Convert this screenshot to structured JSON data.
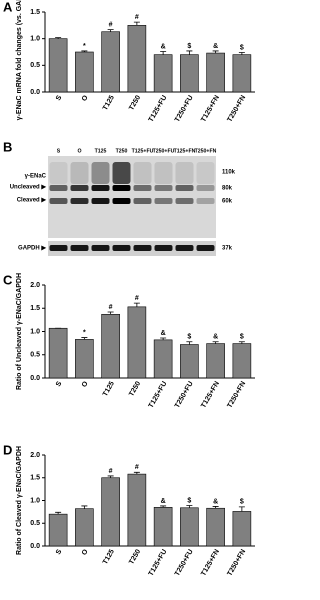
{
  "chart_data": [
    {
      "type": "bar",
      "panel": "A",
      "ylabel": "γ-ENaC mRNA fold changes (vs. GAPDH)",
      "categories": [
        "S",
        "O",
        "T125",
        "T250",
        "T125+FU",
        "T250+FU",
        "T125+FN",
        "T250+FN"
      ],
      "values": [
        1.0,
        0.75,
        1.13,
        1.25,
        0.7,
        0.7,
        0.73,
        0.7
      ],
      "errors": [
        0.02,
        0.02,
        0.04,
        0.06,
        0.06,
        0.07,
        0.04,
        0.04
      ],
      "annotations": [
        null,
        "*",
        "#",
        "#",
        "&",
        "$",
        "&",
        "$"
      ],
      "color": "#808080",
      "ylim": [
        0,
        1.5
      ],
      "yticks": [
        {
          "value": 0,
          "label": "0.0"
        },
        {
          "value": 0.5,
          "label": "0.5"
        },
        {
          "value": 1,
          "label": "1.0"
        },
        {
          "value": 1.5,
          "label": "1.5"
        }
      ]
    },
    {
      "type": "bar",
      "panel": "C",
      "ylabel": "Ratio of Uncleaved γ-ENaC/GAPDH",
      "categories": [
        "S",
        "O",
        "T125",
        "T250",
        "T125+FU",
        "T250+FU",
        "T125+FN",
        "T250+FN"
      ],
      "values": [
        1.07,
        0.83,
        1.37,
        1.53,
        0.82,
        0.72,
        0.74,
        0.74
      ],
      "errors": [
        0,
        0.04,
        0.05,
        0.08,
        0.04,
        0.06,
        0.04,
        0.04
      ],
      "annotations": [
        null,
        "*",
        "#",
        "#",
        "&",
        "$",
        "&",
        "$"
      ],
      "color": "#808080",
      "ylim": [
        0,
        2
      ],
      "yticks": [
        {
          "value": 0,
          "label": "0.0"
        },
        {
          "value": 0.5,
          "label": "0.5"
        },
        {
          "value": 1,
          "label": "1.0"
        },
        {
          "value": 1.5,
          "label": "1.5"
        },
        {
          "value": 2,
          "label": "2.0"
        }
      ]
    },
    {
      "type": "bar",
      "panel": "D",
      "ylabel": "Ratio of Cleaved γ-ENaC/GAPDH",
      "categories": [
        "S",
        "O",
        "T125",
        "T250",
        "T125+FU",
        "T250+FU",
        "T125+FN",
        "T250+FN"
      ],
      "values": [
        0.7,
        0.82,
        1.5,
        1.58,
        0.85,
        0.84,
        0.83,
        0.76
      ],
      "errors": [
        0.04,
        0.06,
        0.04,
        0.04,
        0.03,
        0.05,
        0.04,
        0.1
      ],
      "annotations": [
        null,
        null,
        "#",
        "#",
        "&",
        "$",
        "&",
        "$"
      ],
      "color": "#808080",
      "ylim": [
        0,
        2
      ],
      "yticks": [
        {
          "value": 0,
          "label": "0.0"
        },
        {
          "value": 0.5,
          "label": "0.5"
        },
        {
          "value": 1,
          "label": "1.0"
        },
        {
          "value": 1.5,
          "label": "1.5"
        },
        {
          "value": 2,
          "label": "2.0"
        }
      ]
    }
  ],
  "blot": {
    "panel": "B",
    "lanes": [
      "S",
      "O",
      "T125",
      "T250",
      "T125+FU",
      "T250+FU",
      "T125+FN",
      "T250+FN"
    ],
    "left_labels": [
      "γ-ENaC",
      "Uncleaved ▶",
      "Cleaved ▶",
      "GAPDH ▶"
    ],
    "markers": [
      "110k",
      "80k",
      "60k",
      "37k"
    ]
  }
}
